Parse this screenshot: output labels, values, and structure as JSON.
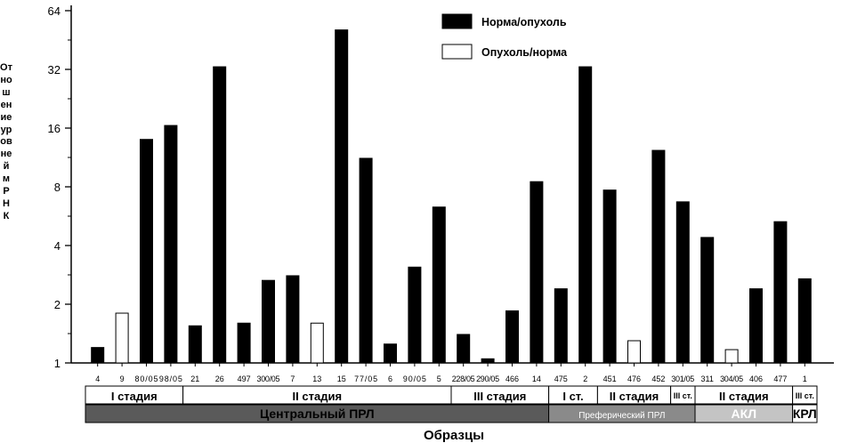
{
  "chart_data": {
    "type": "bar",
    "yscale": "log2",
    "ylim": [
      1,
      64
    ],
    "yticks": [
      "1",
      "2",
      "4",
      "8",
      "16",
      "32",
      "64"
    ],
    "ylabel": "Отношение уровней мРНК",
    "xlabel": "Образцы",
    "legend": {
      "position": "top-right",
      "entries": [
        {
          "label": "Норма/опухоль",
          "fill": "#000000"
        },
        {
          "label": "Опухоль/норма",
          "fill": "#ffffff"
        }
      ]
    },
    "categories": [
      "4",
      "9",
      "80/05",
      "98/05",
      "21",
      "26",
      "497",
      "300/05",
      "7",
      "13",
      "15",
      "77/05",
      "6",
      "90/05",
      "5",
      "228/05",
      "290/05",
      "466",
      "14",
      "475",
      "2",
      "451",
      "476",
      "452",
      "301/05",
      "311",
      "304/05",
      "406",
      "477",
      "1"
    ],
    "series": [
      {
        "name": "Норма/опухоль",
        "values": [
          1.2,
          null,
          14,
          16.5,
          1.55,
          33,
          1.6,
          2.65,
          2.8,
          null,
          51,
          11.2,
          1.25,
          3.1,
          6.3,
          1.4,
          1.05,
          1.85,
          8.5,
          2.4,
          33,
          7.7,
          null,
          12.3,
          6.7,
          4.4,
          null,
          2.4,
          5.3,
          2.7
        ]
      },
      {
        "name": "Опухоль/норма",
        "values": [
          null,
          1.8,
          null,
          null,
          null,
          null,
          null,
          null,
          null,
          1.6,
          null,
          null,
          null,
          null,
          null,
          null,
          null,
          null,
          null,
          null,
          null,
          null,
          1.3,
          null,
          null,
          null,
          1.17,
          null,
          null,
          null
        ]
      }
    ],
    "groups": {
      "stages": [
        {
          "label": "I стадия",
          "span": 4
        },
        {
          "label": "II стадия",
          "span": 11
        },
        {
          "label": "III стадия",
          "span": 4
        },
        {
          "label": "I ст.",
          "span": 2
        },
        {
          "label": "II стадия",
          "span": 3
        },
        {
          "label": "III ст.",
          "span": 1
        },
        {
          "label": "II стадия",
          "span": 4
        },
        {
          "label": "III ст.",
          "span": 1
        }
      ],
      "types": [
        {
          "label": "Центральный ПРЛ",
          "span": 19,
          "fill": "#5a5a5a",
          "text": "#000000"
        },
        {
          "label": "Преферический ПРЛ",
          "span": 6,
          "fill": "#8a8a8a",
          "text": "#ffffff"
        },
        {
          "label": "АКЛ",
          "span": 4,
          "fill": "#c4c4c4",
          "text": "#ffffff"
        },
        {
          "label": "КРЛ",
          "span": 1,
          "fill": "#ffffff",
          "text": "#000000"
        }
      ]
    }
  }
}
